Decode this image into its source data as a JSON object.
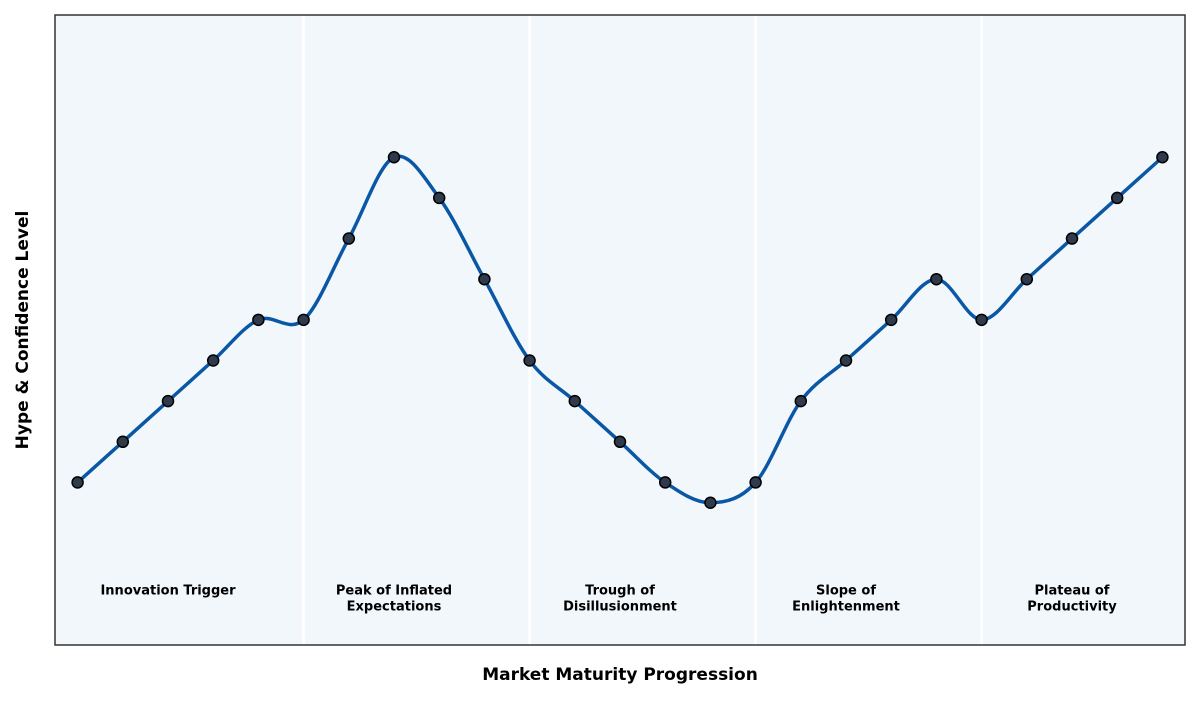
{
  "chart_data": {
    "type": "line",
    "x_label": "Market Maturity Progression",
    "y_label": "Hype & Confidence Level",
    "x": [
      0,
      1,
      2,
      3,
      4,
      5,
      6,
      7,
      8,
      9,
      10,
      11,
      12,
      13,
      14,
      15,
      16,
      17,
      18,
      19,
      20,
      21,
      22,
      23,
      24
    ],
    "series": [
      {
        "color": "#0a57a5",
        "marker_color": "#2f3b4c",
        "values": [
          2,
          3,
          4,
          5,
          6,
          6,
          8,
          10,
          9,
          7,
          5,
          4,
          3,
          2,
          1.5,
          2,
          4,
          5,
          6,
          7,
          6,
          7,
          8,
          9,
          10
        ]
      }
    ],
    "xlim": [
      -0.5,
      24.5
    ],
    "ylim": [
      -2,
      13.5
    ],
    "phase_dividers": [
      5,
      10,
      15,
      20
    ],
    "phases": [
      {
        "x": 2,
        "label": [
          "Innovation Trigger"
        ]
      },
      {
        "x": 7,
        "label": [
          "Peak of Inflated",
          "Expectations"
        ]
      },
      {
        "x": 12,
        "label": [
          "Trough of",
          "Disillusionment"
        ]
      },
      {
        "x": 17,
        "label": [
          "Slope of",
          "Enlightenment"
        ]
      },
      {
        "x": 22,
        "label": [
          "Plateau of",
          "Productivity"
        ]
      }
    ]
  }
}
